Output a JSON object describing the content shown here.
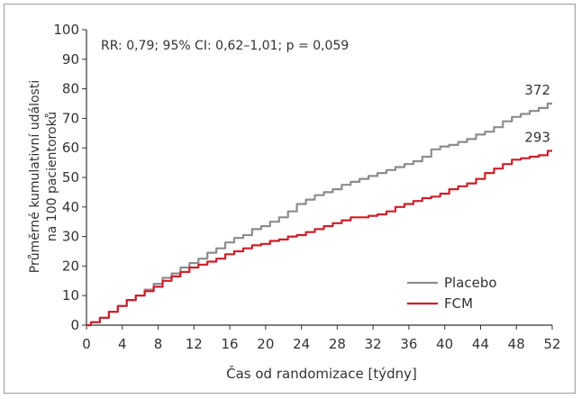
{
  "chart_data": {
    "type": "line",
    "title": "",
    "annotation": "RR: 0,79; 95% CI: 0,62–1,01; p = 0,059",
    "xlabel": "Čas od randomizace  [týdny]",
    "ylabel_lines": [
      "Průměrné kumulativní události",
      "na 100 pacientoroků"
    ],
    "xlim": [
      0,
      52
    ],
    "ylim": [
      0,
      100
    ],
    "xticks": [
      "0",
      "4",
      "8",
      "12",
      "16",
      "20",
      "24",
      "28",
      "32",
      "36",
      "40",
      "44",
      "48",
      "52"
    ],
    "yticks": [
      "0",
      "10",
      "20",
      "30",
      "40",
      "50",
      "60",
      "70",
      "80",
      "90",
      "100"
    ],
    "grid": false,
    "legend_position": "bottom-right",
    "series": [
      {
        "name": "Placebo",
        "color": "#8c8c8c",
        "end_label": "372",
        "x": [
          0,
          1,
          2,
          3,
          4,
          5,
          6,
          7,
          8,
          9,
          10,
          11,
          12,
          13,
          14,
          15,
          16,
          17,
          18,
          19,
          20,
          21,
          22,
          23,
          24,
          25,
          26,
          27,
          28,
          29,
          30,
          31,
          32,
          33,
          34,
          35,
          36,
          37,
          38,
          39,
          40,
          41,
          42,
          43,
          44,
          45,
          46,
          47,
          48,
          49,
          50,
          51,
          52
        ],
        "y": [
          0,
          1,
          2.5,
          4.5,
          6.5,
          8.5,
          10,
          12,
          14,
          16,
          17.5,
          19.5,
          21,
          22.5,
          24.5,
          26,
          28,
          29.5,
          30.5,
          32.5,
          33.5,
          35,
          36.5,
          38.5,
          41,
          42.5,
          44,
          45,
          46,
          47.5,
          48.5,
          49.5,
          50.5,
          51.5,
          52.5,
          53.5,
          54.5,
          55.5,
          57,
          59.5,
          60.5,
          61,
          62,
          63,
          64.5,
          65.5,
          67,
          69,
          70.5,
          71.5,
          72.5,
          73.5,
          75
        ]
      },
      {
        "name": "FCM",
        "color": "#cc1f2a",
        "end_label": "293",
        "x": [
          0,
          1,
          2,
          3,
          4,
          5,
          6,
          7,
          8,
          9,
          10,
          11,
          12,
          13,
          14,
          15,
          16,
          17,
          18,
          19,
          20,
          21,
          22,
          23,
          24,
          25,
          26,
          27,
          28,
          29,
          30,
          31,
          32,
          33,
          34,
          35,
          36,
          37,
          38,
          39,
          40,
          41,
          42,
          43,
          44,
          45,
          46,
          47,
          48,
          49,
          50,
          51,
          52
        ],
        "y": [
          0,
          1,
          2.5,
          4.5,
          6.5,
          8.5,
          10,
          11.5,
          13,
          15,
          16.5,
          18,
          19.5,
          20.5,
          21.5,
          22.5,
          24,
          25,
          26,
          27,
          27.5,
          28.5,
          29,
          30,
          30.5,
          31.5,
          32.5,
          33.5,
          34.5,
          35.5,
          36.5,
          36.5,
          37,
          37.5,
          38.5,
          40,
          41,
          42,
          43,
          43.5,
          44.5,
          46,
          47,
          48,
          49.5,
          51.5,
          53,
          54.5,
          56,
          56.5,
          57,
          57.5,
          59
        ]
      }
    ]
  }
}
